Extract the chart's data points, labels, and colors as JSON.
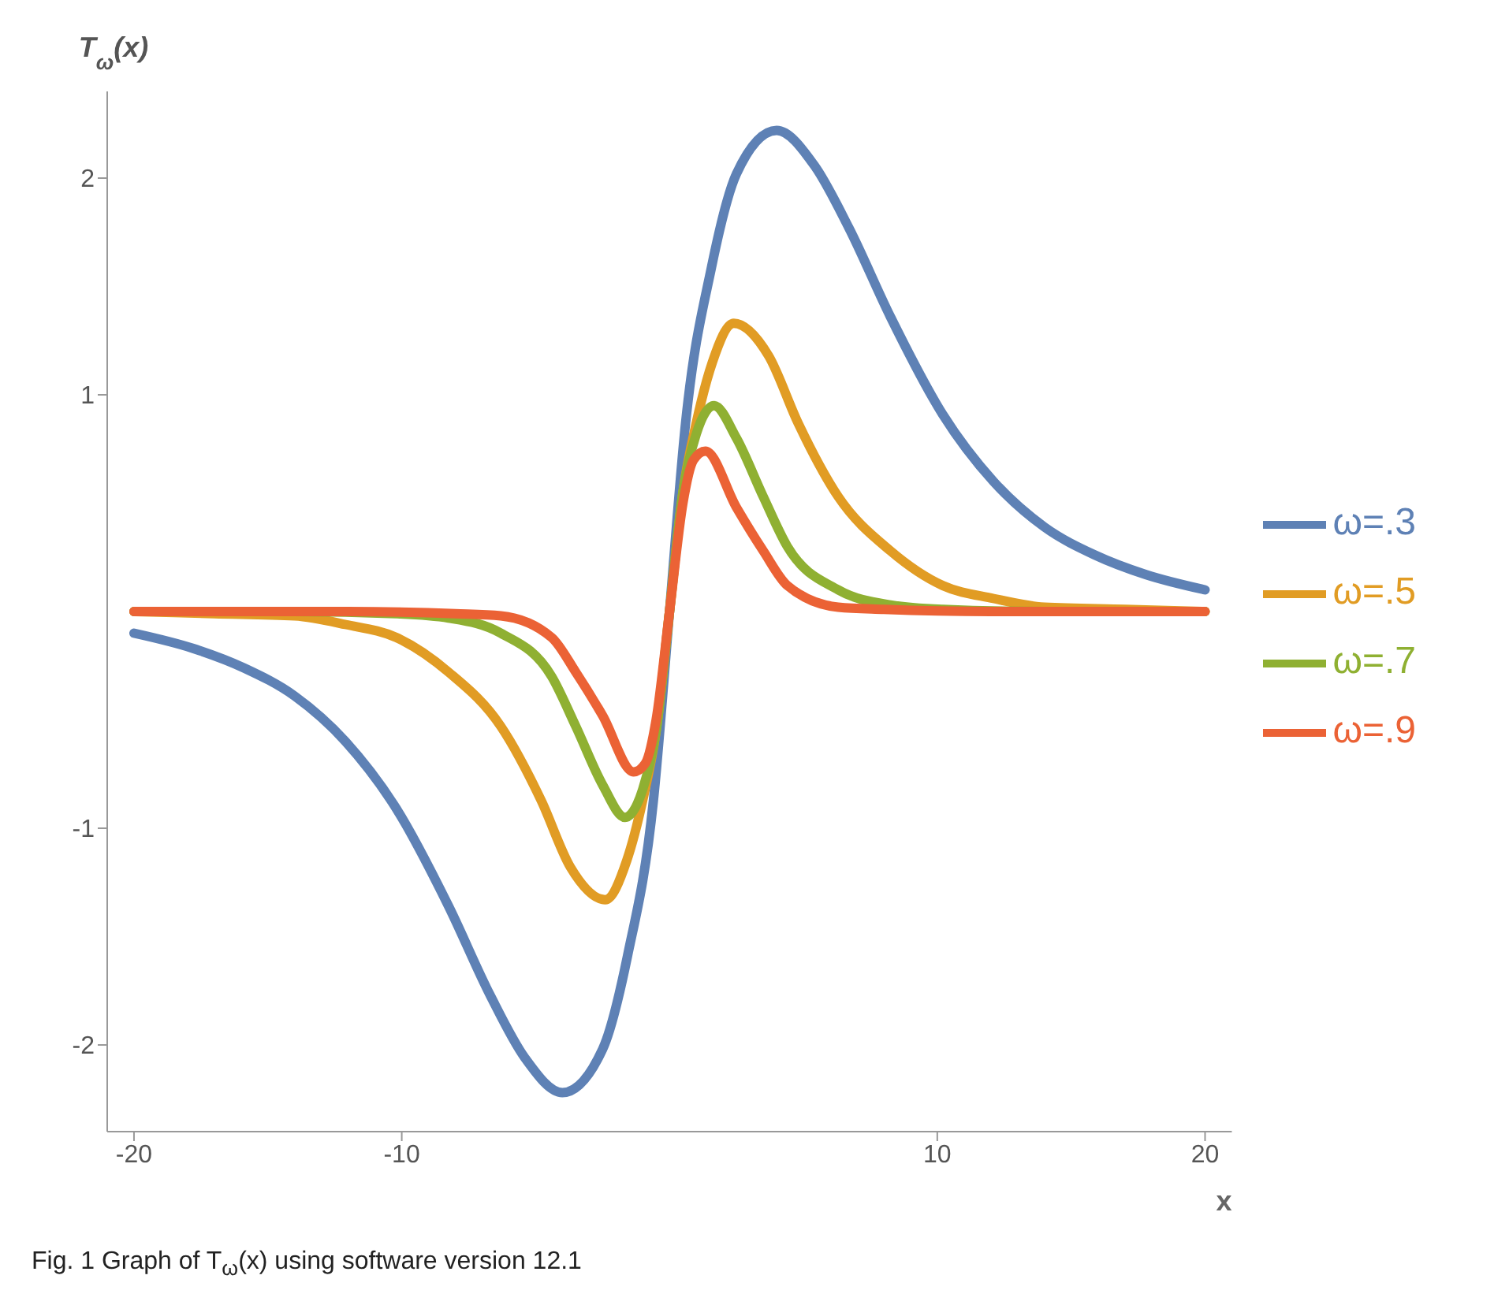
{
  "chart_data": {
    "type": "line",
    "xlabel": "x",
    "ylabel": "T$_{ω}$(x)",
    "annotations": [
      "Fig. 1 Graph of T$_{ω}$(x) using software version 12.1"
    ],
    "xlim": [
      -21,
      21
    ],
    "xticks": [
      -20,
      -10,
      10,
      20
    ],
    "ylim": [
      -2.4,
      2.4
    ],
    "yticks": [
      -2,
      -1,
      1,
      2
    ],
    "grid": false,
    "legend": "right",
    "marker": "none",
    "line_style": "solid",
    "series": [
      {
        "name": "ω=.3",
        "color": "#5e81b5",
        "x": [
          -20,
          -17.8,
          -15.9,
          -14,
          -12.1,
          -10.2,
          -8.25,
          -6.7,
          -5.4,
          -4,
          -2.5,
          -1.57,
          -0.6,
          0,
          0.6,
          1.57,
          2.5,
          4,
          5.4,
          6.7,
          8.25,
          10.2,
          12.1,
          14,
          15.9,
          17.8,
          20
        ],
        "values": [
          -0.1,
          -0.17,
          -0.26,
          -0.39,
          -0.6,
          -0.91,
          -1.36,
          -1.77,
          -2.06,
          -2.22,
          -2.02,
          -1.59,
          -0.87,
          0,
          0.87,
          1.59,
          2.02,
          2.22,
          2.06,
          1.77,
          1.36,
          0.91,
          0.6,
          0.39,
          0.26,
          0.17,
          0.1
        ]
      },
      {
        "name": "ω=.5",
        "color": "#e19c24",
        "x": [
          -20,
          -17,
          -14,
          -12.1,
          -10.2,
          -8.25,
          -6.3,
          -4.8,
          -3.7,
          -2.4,
          -1.6,
          -1,
          -0.5,
          0,
          0.5,
          1,
          1.6,
          2.4,
          3.7,
          4.8,
          6.3,
          8.25,
          10.2,
          12.1,
          14,
          17,
          20
        ],
        "values": [
          0,
          -0.01,
          -0.02,
          -0.06,
          -0.12,
          -0.28,
          -0.53,
          -0.87,
          -1.18,
          -1.33,
          -1.15,
          -0.87,
          -0.55,
          0,
          0.55,
          0.87,
          1.15,
          1.33,
          1.18,
          0.87,
          0.53,
          0.28,
          0.12,
          0.06,
          0.02,
          0.01,
          0
        ]
      },
      {
        "name": "ω=.7",
        "color": "#8fb032",
        "x": [
          -20,
          -14,
          -10.2,
          -8.25,
          -6.3,
          -4.4,
          -3.5,
          -2.5,
          -1.66,
          -1,
          -0.5,
          0,
          0.5,
          1,
          1.66,
          2.5,
          3.5,
          4.4,
          6.3,
          8.25,
          10.2,
          14,
          20
        ],
        "values": [
          0,
          0,
          -0.01,
          -0.03,
          -0.1,
          -0.3,
          -0.53,
          -0.8,
          -0.95,
          -0.82,
          -0.55,
          0,
          0.55,
          0.82,
          0.95,
          0.8,
          0.53,
          0.3,
          0.1,
          0.03,
          0.01,
          0,
          0
        ]
      },
      {
        "name": "ω=.9",
        "color": "#eb6235",
        "x": [
          -20,
          -12,
          -8,
          -6.3,
          -4.4,
          -3.5,
          -2.5,
          -1.34,
          -0.9,
          -0.5,
          0,
          0.5,
          0.9,
          1.34,
          2.5,
          3.5,
          4.4,
          6.3,
          8,
          12,
          20
        ],
        "values": [
          0,
          0,
          -0.01,
          -0.02,
          -0.12,
          -0.28,
          -0.48,
          -0.74,
          -0.7,
          -0.5,
          0,
          0.5,
          0.7,
          0.74,
          0.48,
          0.28,
          0.12,
          0.02,
          0.01,
          0,
          0
        ]
      }
    ]
  }
}
